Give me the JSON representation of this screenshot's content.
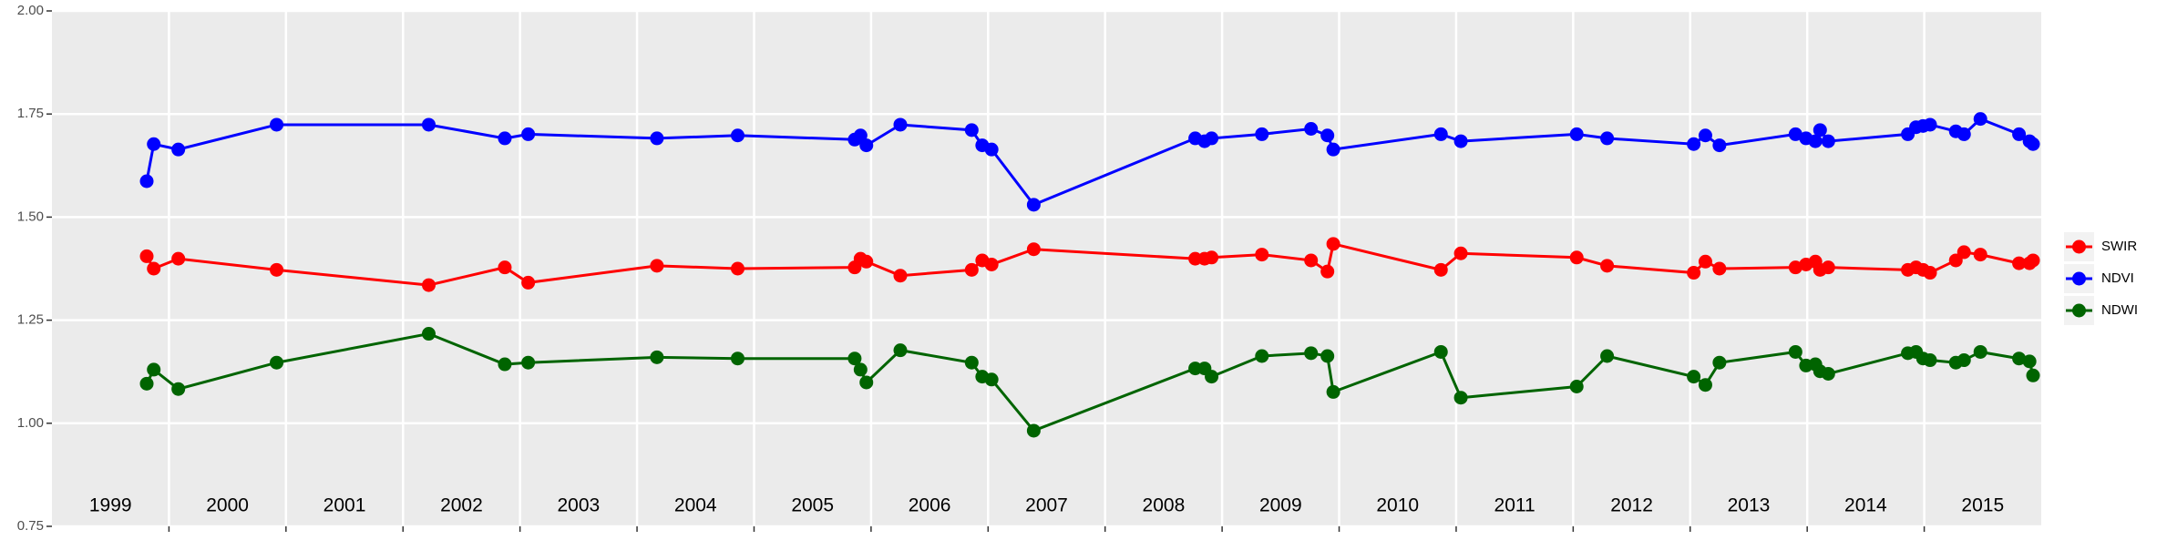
{
  "chart_data": {
    "type": "line",
    "x": [
      1999.81,
      1999.87,
      2000.08,
      2000.92,
      2002.22,
      2002.87,
      2003.07,
      2004.17,
      2004.86,
      2005.86,
      2005.91,
      2005.96,
      2006.25,
      2006.86,
      2006.95,
      2007.03,
      2007.39,
      2008.77,
      2008.85,
      2008.91,
      2009.34,
      2009.76,
      2009.9,
      2009.95,
      2010.87,
      2011.04,
      2012.03,
      2012.29,
      2013.03,
      2013.13,
      2013.25,
      2013.9,
      2013.99,
      2014.07,
      2014.11,
      2014.18,
      2014.86,
      2014.93,
      2014.99,
      2015.05,
      2015.27,
      2015.34,
      2015.48,
      2015.81,
      2015.9,
      2015.93
    ],
    "series": [
      {
        "name": "SWIR",
        "color": "#ff0000",
        "values": [
          1.405,
          1.375,
          1.399,
          1.372,
          1.335,
          1.378,
          1.341,
          1.382,
          1.375,
          1.378,
          1.399,
          1.392,
          1.358,
          1.372,
          1.395,
          1.385,
          1.422,
          1.399,
          1.399,
          1.402,
          1.409,
          1.395,
          1.368,
          1.435,
          1.372,
          1.412,
          1.402,
          1.382,
          1.365,
          1.392,
          1.375,
          1.378,
          1.385,
          1.392,
          1.372,
          1.378,
          1.372,
          1.378,
          1.372,
          1.365,
          1.395,
          1.415,
          1.409,
          1.388,
          1.388,
          1.395
        ]
      },
      {
        "name": "NDVI",
        "color": "#0000ff",
        "values": [
          1.587,
          1.677,
          1.664,
          1.724,
          1.724,
          1.691,
          1.701,
          1.691,
          1.698,
          1.688,
          1.698,
          1.674,
          1.724,
          1.711,
          1.674,
          1.664,
          1.53,
          1.691,
          1.684,
          1.691,
          1.701,
          1.714,
          1.698,
          1.664,
          1.701,
          1.684,
          1.701,
          1.691,
          1.677,
          1.698,
          1.674,
          1.701,
          1.691,
          1.684,
          1.711,
          1.684,
          1.701,
          1.718,
          1.721,
          1.724,
          1.708,
          1.701,
          1.738,
          1.701,
          1.684,
          1.677
        ]
      },
      {
        "name": "NDWI",
        "color": "#006400",
        "values": [
          1.096,
          1.13,
          1.083,
          1.147,
          1.217,
          1.143,
          1.147,
          1.16,
          1.157,
          1.157,
          1.13,
          1.099,
          1.177,
          1.147,
          1.113,
          1.106,
          0.982,
          1.133,
          1.133,
          1.113,
          1.163,
          1.17,
          1.163,
          1.076,
          1.173,
          1.062,
          1.089,
          1.163,
          1.113,
          1.093,
          1.147,
          1.173,
          1.14,
          1.143,
          1.126,
          1.12,
          1.17,
          1.173,
          1.157,
          1.153,
          1.147,
          1.153,
          1.173,
          1.157,
          1.15,
          1.116
        ]
      }
    ],
    "xlim": [
      1999.0,
      2016.0
    ],
    "xticks": [
      2000,
      2001,
      2002,
      2003,
      2004,
      2005,
      2006,
      2007,
      2008,
      2009,
      2010,
      2011,
      2012,
      2013,
      2014,
      2015
    ],
    "year_labels": [
      {
        "value": 1999.5,
        "label": "1999"
      },
      {
        "value": 2000.5,
        "label": "2000"
      },
      {
        "value": 2001.5,
        "label": "2001"
      },
      {
        "value": 2002.5,
        "label": "2002"
      },
      {
        "value": 2003.5,
        "label": "2003"
      },
      {
        "value": 2004.5,
        "label": "2004"
      },
      {
        "value": 2005.5,
        "label": "2005"
      },
      {
        "value": 2006.5,
        "label": "2006"
      },
      {
        "value": 2007.5,
        "label": "2007"
      },
      {
        "value": 2008.5,
        "label": "2008"
      },
      {
        "value": 2009.5,
        "label": "2009"
      },
      {
        "value": 2010.5,
        "label": "2010"
      },
      {
        "value": 2011.5,
        "label": "2011"
      },
      {
        "value": 2012.5,
        "label": "2012"
      },
      {
        "value": 2013.5,
        "label": "2013"
      },
      {
        "value": 2014.5,
        "label": "2014"
      },
      {
        "value": 2015.5,
        "label": "2015"
      }
    ],
    "ylim": [
      0.75,
      2.0
    ],
    "yticks": [
      {
        "value": 0.75,
        "label": "0.75"
      },
      {
        "value": 1.0,
        "label": "1.00"
      },
      {
        "value": 1.25,
        "label": "1.25"
      },
      {
        "value": 1.5,
        "label": "1.50"
      },
      {
        "value": 1.75,
        "label": "1.75"
      },
      {
        "value": 2.0,
        "label": "2.00"
      }
    ],
    "grid": true,
    "legend": "right"
  }
}
